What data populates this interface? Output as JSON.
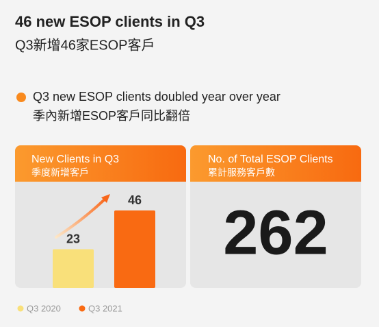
{
  "header": {
    "title": "46 new ESOP clients in Q3",
    "subtitle": "Q3新增46家ESOP客戶"
  },
  "highlight": {
    "text": "Q3 new ESOP clients doubled year over year",
    "text_zh": "季內新增ESOP客戶同比翻倍"
  },
  "chart_data": {
    "type": "bar",
    "title": "New Clients in Q3",
    "subtitle": "季度新增客戶",
    "categories": [
      "Q3 2020",
      "Q3 2021"
    ],
    "values": [
      23,
      46
    ],
    "colors": [
      "#f9e07a",
      "#f96a12"
    ]
  },
  "total": {
    "title": "No. of Total ESOP Clients",
    "subtitle": "累計服務客戶數",
    "value": 262
  }
}
